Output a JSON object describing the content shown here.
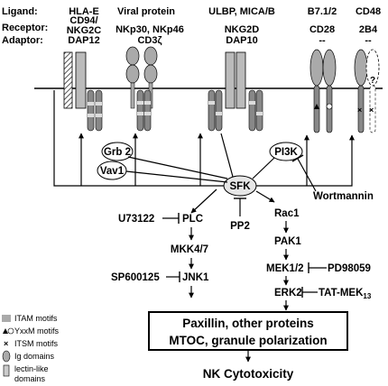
{
  "row_labels": {
    "ligand": "Ligand:",
    "receptor": "Receptor:",
    "adaptor": "Adaptor:"
  },
  "columns": [
    {
      "ligand": "HLA-E",
      "receptor": "CD94/",
      "receptor2": "NKG2C",
      "adaptor": "DAP12"
    },
    {
      "ligand": "Viral protein",
      "receptor": "NKp30, NKp46",
      "adaptor": "CD3ζ"
    },
    {
      "ligand": "ULBP, MICA/B",
      "receptor": "NKG2D",
      "adaptor": "DAP10"
    },
    {
      "ligand": "B7.1/2",
      "receptor": "CD28",
      "adaptor": "--"
    },
    {
      "ligand": "CD48",
      "receptor": "2B4",
      "adaptor": "--"
    }
  ],
  "membrane_marks": {
    "unknown": "?"
  },
  "nodes": {
    "grb2": "Grb 2",
    "vav1": "Vav1",
    "pi3k": "PI3K",
    "sfk": "SFK",
    "wortmannin": "Wortmannin",
    "u73122": "U73122",
    "plc": "PLC",
    "pp2": "PP2",
    "rac1": "Rac1",
    "pak1": "PAK1",
    "mkk47": "MKK4/7",
    "mek12": "MEK1/2",
    "pd98059": "PD98059",
    "sp600125": "SP600125",
    "jnk1": "JNK1",
    "erk2": "ERK2",
    "tat_mek": "TAT-MEK",
    "tat_mek_sub": "13"
  },
  "outcome": {
    "line1": "Paxillin, other proteins",
    "line2": "MTOC, granule polarization"
  },
  "final": "NK Cytotoxicity",
  "legend": {
    "itam": "ITAM motifs",
    "yxxm": "YxxM motifs",
    "itsm": "ITSM motifs",
    "ig": "Ig domains",
    "lectin1": "lectin-like",
    "lectin2": "domains"
  }
}
